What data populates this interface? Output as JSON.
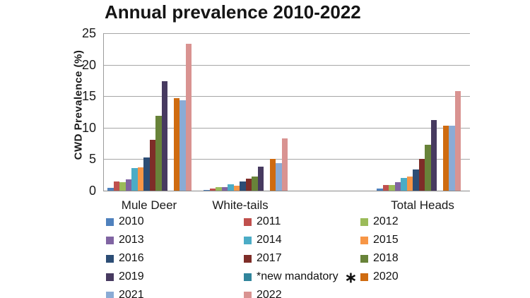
{
  "title": "Annual prevalence 2010-2022",
  "y_axis": {
    "label": "CWD Prevalence  (%)",
    "ticks": [
      0,
      5,
      10,
      15,
      20,
      25
    ]
  },
  "chart_data": {
    "type": "bar",
    "title": "Annual prevalence 2010-2022",
    "xlabel": "",
    "ylabel": "CWD Prevalence (%)",
    "ylim": [
      0,
      25
    ],
    "yticks": [
      0,
      5,
      10,
      15,
      20,
      25
    ],
    "grid": true,
    "legend_position": "bottom",
    "categories": [
      "Mule Deer",
      "White-tails",
      "Total Heads"
    ],
    "series": [
      {
        "name": "2010",
        "color": "#4f81bd",
        "values": [
          0.5,
          0.1,
          0.3
        ]
      },
      {
        "name": "2011",
        "color": "#c0504d",
        "values": [
          1.5,
          0.3,
          0.9
        ]
      },
      {
        "name": "2012",
        "color": "#9bbb59",
        "values": [
          1.3,
          0.6,
          0.9
        ]
      },
      {
        "name": "2013",
        "color": "#8064a2",
        "values": [
          1.8,
          0.6,
          1.3
        ]
      },
      {
        "name": "2014",
        "color": "#4bacc6",
        "values": [
          3.6,
          1.0,
          2.0
        ]
      },
      {
        "name": "2015",
        "color": "#f79646",
        "values": [
          3.7,
          0.8,
          2.2
        ]
      },
      {
        "name": "2016",
        "color": "#2c4d75",
        "values": [
          5.3,
          1.5,
          3.4
        ]
      },
      {
        "name": "2017",
        "color": "#7e2d28",
        "values": [
          8.1,
          1.9,
          5.1
        ]
      },
      {
        "name": "2018",
        "color": "#688339",
        "values": [
          11.9,
          2.3,
          7.3
        ]
      },
      {
        "name": "2019",
        "color": "#473a60",
        "values": [
          17.4,
          3.8,
          11.2
        ]
      },
      {
        "name": "*new mandatory",
        "color": "#31859c",
        "values": [
          0,
          0,
          0
        ],
        "suffix": "∗"
      },
      {
        "name": "2020",
        "color": "#cf6b10",
        "values": [
          14.7,
          5.0,
          10.3
        ]
      },
      {
        "name": "2021",
        "color": "#8aabd5",
        "values": [
          14.3,
          4.4,
          10.3
        ]
      },
      {
        "name": "2022",
        "color": "#d99391",
        "values": [
          23.3,
          8.3,
          15.8
        ]
      }
    ]
  }
}
